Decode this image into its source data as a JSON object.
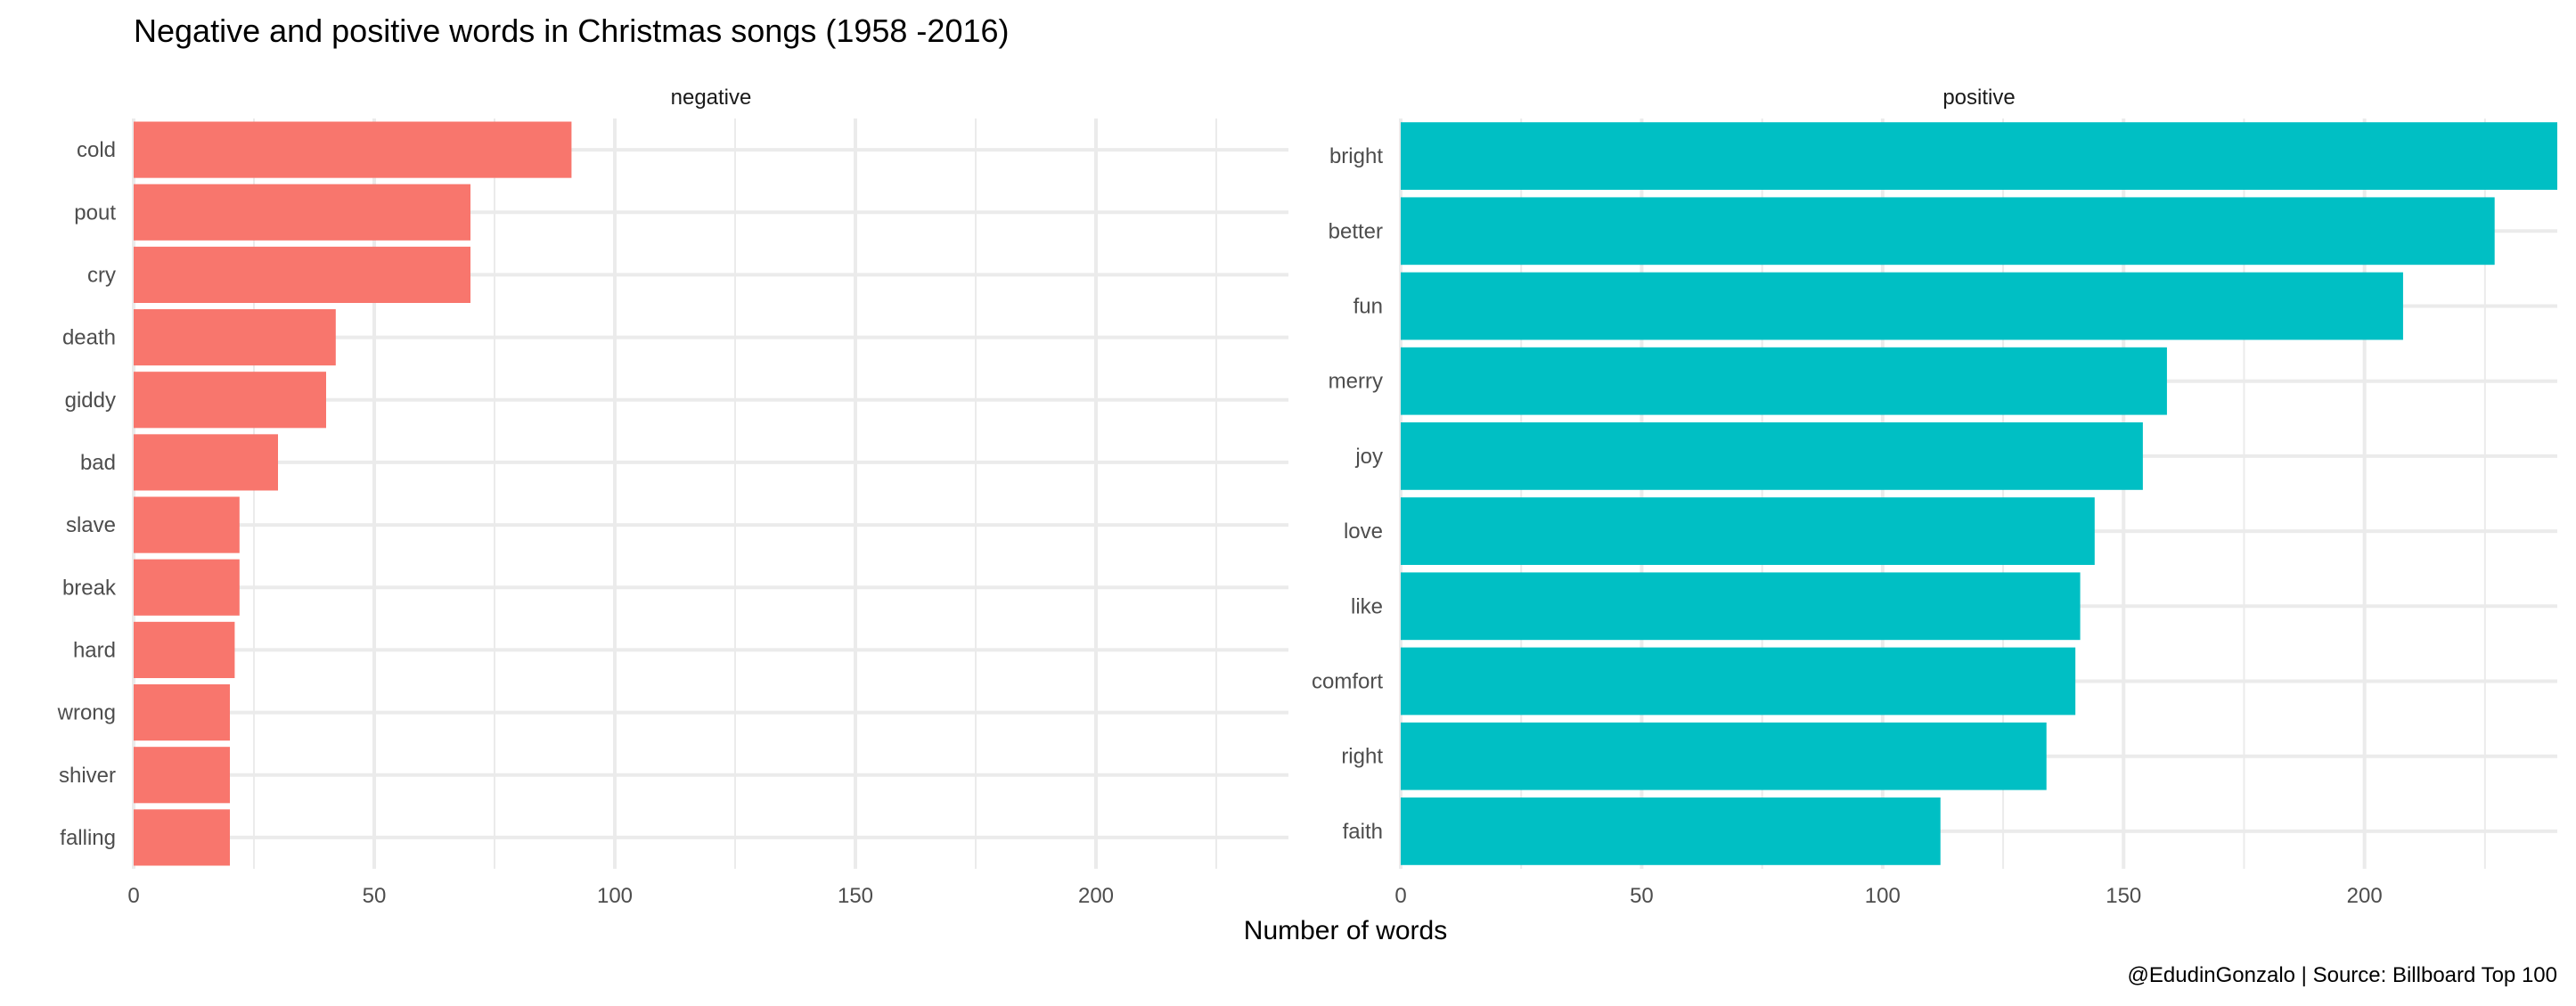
{
  "chart_data": {
    "type": "bar",
    "orientation": "horizontal",
    "title": "Negative and positive words in Christmas songs (1958 -2016)",
    "xlabel": "Number of words",
    "ylabel": "",
    "caption": "@EdudinGonzalo | Source: Billboard Top 100",
    "xlim": [
      0,
      240
    ],
    "x_ticks": [
      0,
      50,
      100,
      150,
      200
    ],
    "grid": true,
    "legend": "none",
    "panels": [
      {
        "name": "negative",
        "color": "#F8766D",
        "categories": [
          "cold",
          "pout",
          "cry",
          "death",
          "giddy",
          "bad",
          "slave",
          "break",
          "hard",
          "wrong",
          "shiver",
          "falling"
        ],
        "values": [
          91,
          70,
          70,
          42,
          40,
          30,
          22,
          22,
          21,
          20,
          20,
          20
        ]
      },
      {
        "name": "positive",
        "color": "#00BFC4",
        "categories": [
          "bright",
          "better",
          "fun",
          "merry",
          "joy",
          "love",
          "like",
          "comfort",
          "right",
          "faith"
        ],
        "values": [
          240,
          227,
          208,
          159,
          154,
          144,
          141,
          140,
          134,
          112
        ]
      }
    ]
  }
}
